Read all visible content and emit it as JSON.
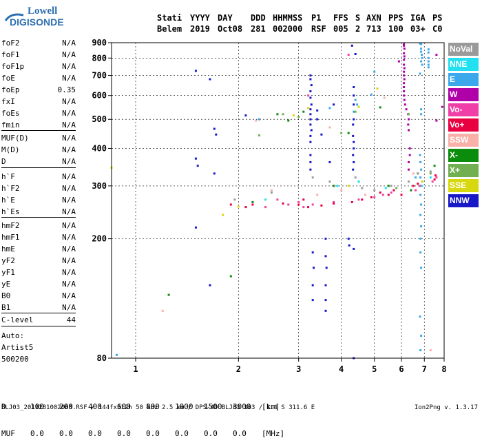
{
  "logo": {
    "line1": "Lowell",
    "line2": "DIGISONDE"
  },
  "header": {
    "labels": [
      "Stati",
      "YYYY",
      "DAY",
      "DDD",
      "HHMMSS",
      "P1",
      "FFS",
      "S",
      "AXN",
      "PPS",
      "IGA",
      "PS"
    ],
    "values": [
      "Belem",
      "2019",
      "Oct08",
      "281",
      "002000",
      "RSF",
      "005",
      "2",
      "713",
      "100",
      "03+",
      "C0"
    ]
  },
  "params": {
    "group1": [
      [
        "foF2",
        "N/A"
      ],
      [
        "foF1",
        "N/A"
      ],
      [
        "foF1p",
        "N/A"
      ],
      [
        "foE",
        "N/A"
      ],
      [
        "foEp",
        "0.35"
      ],
      [
        "fxI",
        "N/A"
      ],
      [
        "foEs",
        "N/A"
      ],
      [
        "fmin",
        "N/A"
      ]
    ],
    "group2": [
      [
        "MUF(D)",
        "N/A"
      ],
      [
        "M(D)",
        "N/A"
      ],
      [
        "D",
        "N/A"
      ]
    ],
    "group3": [
      [
        "h`F",
        "N/A"
      ],
      [
        "h`F2",
        "N/A"
      ],
      [
        "h`E",
        "N/A"
      ],
      [
        "h`Es",
        "N/A"
      ]
    ],
    "group4": [
      [
        "hmF2",
        "N/A"
      ],
      [
        "hmF1",
        "N/A"
      ],
      [
        "hmE",
        "N/A"
      ],
      [
        "yF2",
        "N/A"
      ],
      [
        "yF1",
        "N/A"
      ],
      [
        "yE",
        "N/A"
      ],
      [
        "B0",
        "N/A"
      ],
      [
        "B1",
        "N/A"
      ]
    ],
    "clevel": [
      "C-level",
      "44"
    ],
    "auto": [
      "Auto:",
      "Artist5",
      "500200"
    ]
  },
  "legend": [
    {
      "label": "NoVal",
      "color": "#9a9a9a"
    },
    {
      "label": "NNE",
      "color": "#22e0f0"
    },
    {
      "label": "E",
      "color": "#3ca8ec"
    },
    {
      "label": "W",
      "color": "#b000a8"
    },
    {
      "label": "Vo-",
      "color": "#f040a8"
    },
    {
      "label": "Vo+",
      "color": "#e80040"
    },
    {
      "label": "SSW",
      "color": "#f8b0a8"
    },
    {
      "label": "X-",
      "color": "#0c8c0c"
    },
    {
      "label": "X+",
      "color": "#70b050"
    },
    {
      "label": "SSE",
      "color": "#d8d810"
    },
    {
      "label": "NNW",
      "color": "#1818c8"
    }
  ],
  "bottom": {
    "d_row": [
      "D",
      "100",
      "200",
      "400",
      "600",
      "800",
      "1000",
      "1500",
      "3000",
      "[km]"
    ],
    "muf_row": [
      "MUF",
      "0.0",
      "0.0",
      "0.0",
      "0.0",
      "0.0",
      "0.0",
      "0.0",
      "0.0",
      "[MHz]"
    ]
  },
  "footer": "BLJ03_2019281002000.RSF / 144fx512h 50 kHz 2.5 km / DPS-4D BLJ03 103 / 1.4 S 311.6 E",
  "version": "Ion2Png v. 1.3.17",
  "chart_data": {
    "type": "scatter",
    "title": "",
    "xlabel": "",
    "ylabel": "",
    "xscale": "log",
    "yscale": "log",
    "xlim": [
      0.85,
      8.0
    ],
    "ylim": [
      80,
      900
    ],
    "x_ticks": [
      1,
      2,
      3,
      4,
      5,
      6,
      7,
      8
    ],
    "y_ticks": [
      80,
      200,
      300,
      400,
      500,
      600,
      700,
      800,
      900
    ],
    "grid": "dashed",
    "legend_position": "right",
    "series": [
      {
        "name": "NNW",
        "color": "#1818c8",
        "points": [
          [
            1.5,
            725
          ],
          [
            1.65,
            680
          ],
          [
            1.7,
            465
          ],
          [
            1.72,
            445
          ],
          [
            1.5,
            370
          ],
          [
            1.52,
            350
          ],
          [
            1.7,
            330
          ],
          [
            1.5,
            218
          ],
          [
            1.65,
            140
          ],
          [
            3.25,
            700
          ],
          [
            3.25,
            680
          ],
          [
            3.27,
            650
          ],
          [
            3.25,
            620
          ],
          [
            3.25,
            590
          ],
          [
            3.27,
            560
          ],
          [
            3.25,
            540
          ],
          [
            3.25,
            520
          ],
          [
            3.25,
            500
          ],
          [
            3.25,
            480
          ],
          [
            3.27,
            460
          ],
          [
            3.25,
            440
          ],
          [
            3.25,
            420
          ],
          [
            3.25,
            380
          ],
          [
            3.25,
            360
          ],
          [
            3.25,
            340
          ],
          [
            3.3,
            180
          ],
          [
            3.32,
            160
          ],
          [
            3.3,
            140
          ],
          [
            3.3,
            125
          ],
          [
            3.6,
            200
          ],
          [
            3.6,
            175
          ],
          [
            3.62,
            160
          ],
          [
            3.6,
            140
          ],
          [
            3.6,
            125
          ],
          [
            3.6,
            115
          ],
          [
            4.3,
            880
          ],
          [
            4.4,
            825
          ],
          [
            4.35,
            640
          ],
          [
            4.35,
            600
          ],
          [
            4.35,
            560
          ],
          [
            4.35,
            500
          ],
          [
            4.33,
            480
          ],
          [
            4.33,
            440
          ],
          [
            4.35,
            420
          ],
          [
            4.35,
            400
          ],
          [
            4.33,
            380
          ],
          [
            4.35,
            360
          ],
          [
            4.33,
            340
          ],
          [
            4.2,
            200
          ],
          [
            4.22,
            190
          ],
          [
            4.35,
            185
          ],
          [
            4.35,
            80
          ],
          [
            2.1,
            515
          ],
          [
            3.4,
            535
          ],
          [
            3.4,
            500
          ],
          [
            3.7,
            360
          ],
          [
            3.5,
            445
          ],
          [
            3.8,
            560
          ]
        ]
      },
      {
        "name": "E",
        "color": "#3ca8ec",
        "points": [
          [
            0.88,
            82
          ],
          [
            6.8,
            895
          ],
          [
            6.85,
            890
          ],
          [
            6.85,
            860
          ],
          [
            6.85,
            840
          ],
          [
            6.88,
            820
          ],
          [
            6.9,
            800
          ],
          [
            6.85,
            780
          ],
          [
            6.9,
            760
          ],
          [
            7.2,
            855
          ],
          [
            7.2,
            835
          ],
          [
            7.2,
            800
          ],
          [
            7.2,
            780
          ],
          [
            7.2,
            760
          ],
          [
            7.2,
            745
          ],
          [
            6.8,
            710
          ],
          [
            6.85,
            540
          ],
          [
            6.85,
            520
          ],
          [
            6.8,
            380
          ],
          [
            6.82,
            360
          ],
          [
            6.85,
            340
          ],
          [
            6.82,
            320
          ],
          [
            6.85,
            300
          ],
          [
            6.82,
            280
          ],
          [
            6.85,
            260
          ],
          [
            6.82,
            240
          ],
          [
            6.85,
            220
          ],
          [
            6.82,
            200
          ],
          [
            6.82,
            180
          ],
          [
            6.85,
            160
          ],
          [
            6.8,
            110
          ],
          [
            6.85,
            95
          ],
          [
            6.82,
            85
          ],
          [
            5.0,
            720
          ],
          [
            4.4,
            580
          ],
          [
            4.45,
            560
          ],
          [
            4.35,
            530
          ],
          [
            2.3,
            500
          ],
          [
            3.7,
            545
          ],
          [
            4.9,
            605
          ],
          [
            6.9,
            310
          ],
          [
            6.6,
            320
          ]
        ]
      },
      {
        "name": "W",
        "color": "#b000a8",
        "points": [
          [
            6.1,
            890
          ],
          [
            6.1,
            880
          ],
          [
            6.12,
            860
          ],
          [
            6.1,
            830
          ],
          [
            6.12,
            810
          ],
          [
            6.1,
            790
          ],
          [
            6.1,
            760
          ],
          [
            6.12,
            740
          ],
          [
            6.1,
            720
          ],
          [
            6.1,
            700
          ],
          [
            6.12,
            680
          ],
          [
            6.1,
            660
          ],
          [
            6.1,
            640
          ],
          [
            6.1,
            620
          ],
          [
            6.1,
            600
          ],
          [
            6.12,
            580
          ],
          [
            6.15,
            560
          ],
          [
            6.2,
            540
          ],
          [
            6.28,
            520
          ],
          [
            6.3,
            500
          ],
          [
            6.28,
            480
          ],
          [
            6.3,
            460
          ],
          [
            6.35,
            400
          ],
          [
            6.35,
            380
          ],
          [
            6.3,
            360
          ],
          [
            6.3,
            340
          ],
          [
            7.6,
            820
          ],
          [
            7.6,
            495
          ],
          [
            7.9,
            550
          ],
          [
            5.9,
            780
          ]
        ]
      },
      {
        "name": "Vo-",
        "color": "#f040a8",
        "points": [
          [
            3.3,
            260
          ],
          [
            3.1,
            255
          ],
          [
            3.0,
            265
          ],
          [
            2.8,
            260
          ],
          [
            2.6,
            270
          ],
          [
            3.8,
            265
          ],
          [
            4.5,
            270
          ],
          [
            5.0,
            275
          ],
          [
            5.3,
            280
          ],
          [
            5.6,
            285
          ],
          [
            6.6,
            290
          ],
          [
            6.8,
            300
          ],
          [
            7.4,
            310
          ],
          [
            7.6,
            320
          ],
          [
            2.4,
            255
          ],
          [
            4.2,
            820
          ],
          [
            3.2,
            600
          ]
        ]
      },
      {
        "name": "Vo+",
        "color": "#e80040",
        "points": [
          [
            3.2,
            255
          ],
          [
            3.0,
            260
          ],
          [
            2.7,
            262
          ],
          [
            3.5,
            258
          ],
          [
            3.8,
            262
          ],
          [
            4.3,
            265
          ],
          [
            4.6,
            270
          ],
          [
            4.9,
            275
          ],
          [
            5.5,
            280
          ],
          [
            5.7,
            290
          ],
          [
            6.5,
            300
          ],
          [
            6.7,
            305
          ],
          [
            7.5,
            315
          ],
          [
            7.55,
            325
          ],
          [
            1.9,
            260
          ],
          [
            2.1,
            255
          ],
          [
            2.2,
            260
          ],
          [
            6.0,
            280
          ],
          [
            5.2,
            285
          ],
          [
            3.1,
            270
          ]
        ]
      },
      {
        "name": "X-",
        "color": "#0c8c0c",
        "points": [
          [
            3.1,
            530
          ],
          [
            2.6,
            520
          ],
          [
            2.8,
            495
          ],
          [
            4.2,
            450
          ],
          [
            5.2,
            548
          ],
          [
            7.5,
            350
          ],
          [
            6.7,
            330
          ],
          [
            4.5,
            310
          ],
          [
            3.8,
            300
          ],
          [
            2.2,
            265
          ],
          [
            1.25,
            130
          ],
          [
            1.9,
            150
          ],
          [
            5.5,
            300
          ],
          [
            6.4,
            290
          ]
        ]
      },
      {
        "name": "X+",
        "color": "#70b050",
        "points": [
          [
            2.7,
            520
          ],
          [
            3.0,
            510
          ],
          [
            4.0,
            450
          ],
          [
            4.4,
            530
          ],
          [
            6.3,
            520
          ],
          [
            7.3,
            330
          ],
          [
            5.8,
            295
          ],
          [
            2.3,
            442
          ]
        ]
      },
      {
        "name": "SSE",
        "color": "#d8d810",
        "points": [
          [
            0.85,
            345
          ],
          [
            5.1,
            633
          ],
          [
            4.5,
            550
          ],
          [
            3.2,
            545
          ],
          [
            2.9,
            515
          ],
          [
            1.8,
            240
          ],
          [
            2.0,
            256
          ],
          [
            4.2,
            300
          ],
          [
            6.9,
            310
          ]
        ]
      },
      {
        "name": "SSW",
        "color": "#f8b0a8",
        "points": [
          [
            2.25,
            495
          ],
          [
            3.7,
            470
          ],
          [
            5.35,
            590
          ],
          [
            7.3,
            85
          ],
          [
            6.5,
            330
          ],
          [
            4.7,
            280
          ],
          [
            4.0,
            290
          ],
          [
            2.5,
            290
          ],
          [
            1.2,
            115
          ],
          [
            3.4,
            280
          ]
        ]
      },
      {
        "name": "NNE",
        "color": "#22e0f0",
        "points": [
          [
            7.3,
            320
          ],
          [
            6.9,
            300
          ],
          [
            3.9,
            300
          ],
          [
            4.5,
            310
          ],
          [
            2.4,
            270
          ],
          [
            5.4,
            295
          ]
        ]
      },
      {
        "name": "NoVal",
        "color": "#9a9a9a",
        "points": [
          [
            3.3,
            320
          ],
          [
            4.4,
            320
          ],
          [
            6.7,
            330
          ],
          [
            2.5,
            285
          ],
          [
            5.0,
            290
          ],
          [
            7.3,
            335
          ],
          [
            1.95,
            270
          ],
          [
            3.7,
            310
          ],
          [
            4.6,
            295
          ],
          [
            5.6,
            300
          ],
          [
            6.3,
            310
          ]
        ]
      }
    ]
  }
}
